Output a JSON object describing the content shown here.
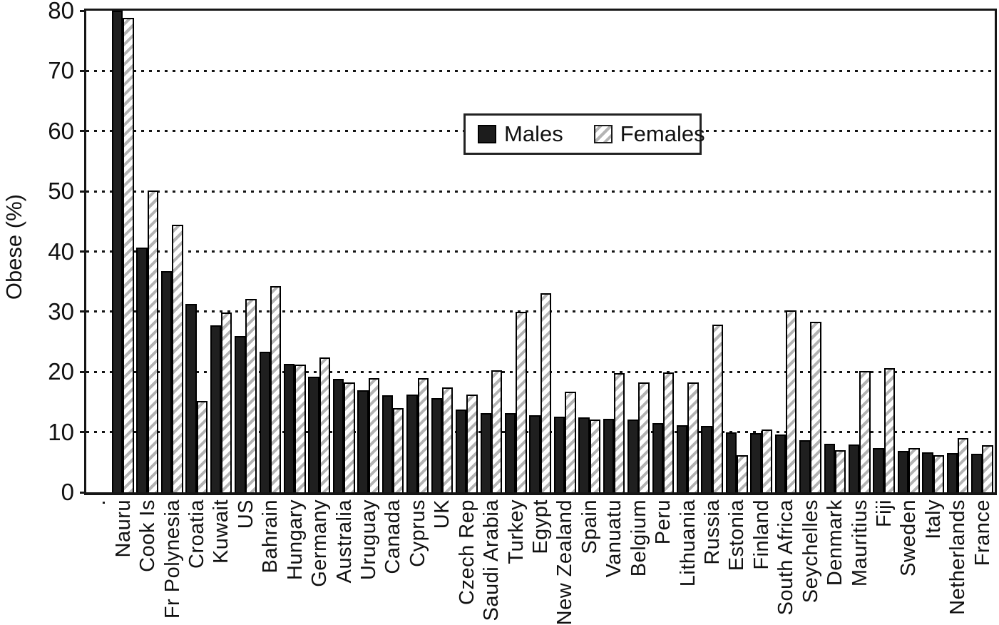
{
  "chart_data": {
    "type": "bar",
    "title": "",
    "ylabel": "Obese (%)",
    "xlabel": "",
    "ylim": [
      0,
      80
    ],
    "yticks": [
      0,
      10,
      20,
      30,
      40,
      50,
      60,
      70,
      80
    ],
    "grid": "horizontal dotted lines at every 10 from 10 to 70",
    "legend": {
      "position": "upper-center-inside",
      "border": true
    },
    "categories": [
      ".",
      "Nauru",
      "Cook Is",
      "Fr Polynesia",
      "Croatia",
      "Kuwait",
      "US",
      "Bahrain",
      "Hungary",
      "Germany",
      "Australia",
      "Uruguay",
      "Canada",
      "Cyprus",
      "UK",
      "Czech Rep",
      "Saudi Arabia",
      "Turkey",
      "Egypt",
      "New Zealand",
      "Spain",
      "Vanuatu",
      "Belgium",
      "Peru",
      "Lithuania",
      "Russia",
      "Estonia",
      "Finland",
      "South Africa",
      "Seychelles",
      "Denmark",
      "Mauritius",
      "Fiji",
      "Sweden",
      "Italy",
      "Netherlands",
      "France"
    ],
    "series": [
      {
        "name": "Males",
        "style": "solid-black",
        "values": [
          null,
          80.2,
          40.7,
          36.7,
          31.3,
          27.7,
          26.0,
          23.4,
          21.3,
          19.2,
          18.8,
          17.0,
          16.1,
          16.2,
          15.6,
          13.8,
          13.1,
          13.1,
          12.8,
          12.6,
          12.4,
          12.2,
          12.1,
          11.5,
          11.2,
          11.0,
          10.0,
          9.8,
          9.6,
          8.6,
          8.1,
          7.9,
          7.3,
          6.9,
          6.6,
          6.5,
          6.4
        ]
      },
      {
        "name": "Females",
        "style": "gray-diagonal-hatch",
        "values": [
          null,
          78.8,
          50.1,
          44.5,
          15.2,
          29.9,
          32.1,
          34.2,
          21.2,
          22.4,
          18.3,
          19.0,
          14.0,
          19.0,
          17.4,
          16.2,
          20.3,
          30.0,
          33.1,
          16.7,
          12.1,
          19.8,
          18.3,
          19.9,
          18.3,
          27.8,
          6.2,
          10.4,
          30.2,
          28.3,
          7.0,
          20.2,
          20.6,
          7.3,
          6.2,
          9.0,
          7.8
        ]
      }
    ],
    "colors": {
      "male_fill": "#1f1f1f",
      "female_hatch": "#b4b4b4",
      "bar_border": "#000000",
      "frame": "#161616",
      "text": "#111111",
      "background": "#ffffff"
    }
  }
}
